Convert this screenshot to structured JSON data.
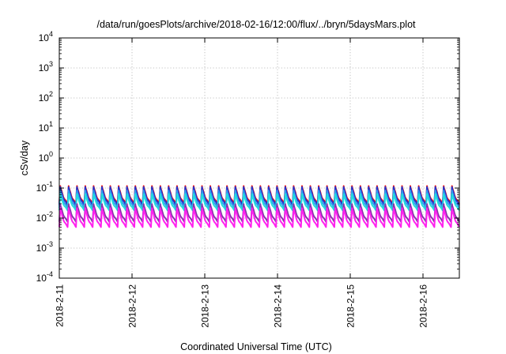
{
  "chart_data": {
    "type": "line",
    "title": "/data/run/goesPlots/archive/2018-02-16/12:00/flux/../bryn/5daysMars.plot",
    "xlabel": "Coordinated Universal Time (UTC)",
    "ylabel": "cSv/day",
    "yscale": "log",
    "ylim": [
      0.0001,
      10000
    ],
    "y_ticks": [
      {
        "value": 0.0001,
        "base": "10",
        "exp": "-4"
      },
      {
        "value": 0.001,
        "base": "10",
        "exp": "-3"
      },
      {
        "value": 0.01,
        "base": "10",
        "exp": "-2"
      },
      {
        "value": 0.1,
        "base": "10",
        "exp": "-1"
      },
      {
        "value": 1,
        "base": "10",
        "exp": "0"
      },
      {
        "value": 10,
        "base": "10",
        "exp": "1"
      },
      {
        "value": 100,
        "base": "10",
        "exp": "2"
      },
      {
        "value": 1000,
        "base": "10",
        "exp": "3"
      },
      {
        "value": 10000,
        "base": "10",
        "exp": "4"
      }
    ],
    "xlim": [
      "2018-02-11T00:00",
      "2018-02-16T12:00"
    ],
    "x_ticks": [
      "2018-2-11",
      "2018-2-12",
      "2018-2-13",
      "2018-2-14",
      "2018-2-15",
      "2018-2-16"
    ],
    "grid": true,
    "legend": "none",
    "oscillation_period_hours": 2.75,
    "series": [
      {
        "color": "#ee1111",
        "peak": 0.12,
        "trough": 0.03
      },
      {
        "color": "#2233cc",
        "peak": 0.11,
        "trough": 0.027
      },
      {
        "color": "#3399ee",
        "peak": 0.085,
        "trough": 0.022
      },
      {
        "color": "#22dddd",
        "peak": 0.065,
        "trough": 0.018
      },
      {
        "color": "#8833aa",
        "peak": 0.03,
        "trough": 0.0075
      },
      {
        "color": "#ff22ee",
        "peak": 0.022,
        "trough": 0.005
      }
    ]
  }
}
